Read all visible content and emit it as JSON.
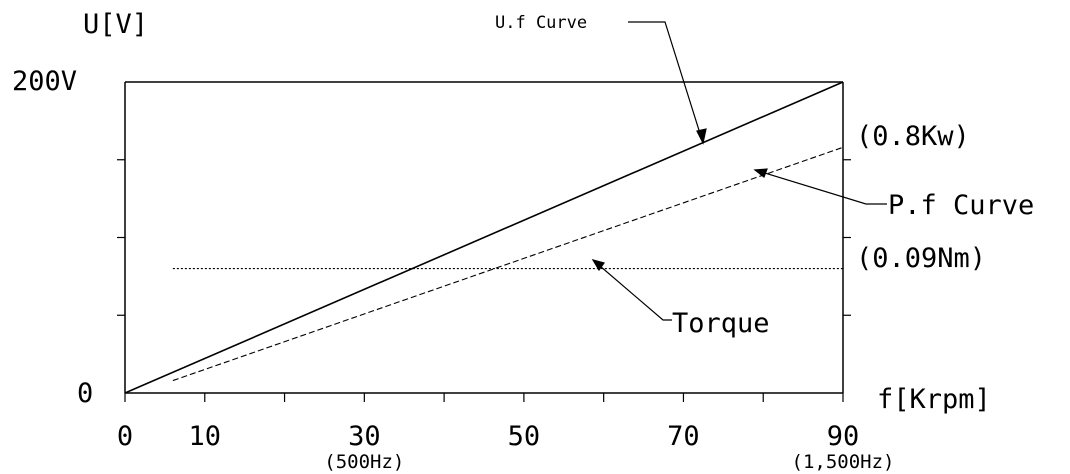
{
  "chart_data": {
    "type": "line",
    "ylabel": "U[V]",
    "xlabel": "f[Krpm]",
    "y_max_label": "200V",
    "y_zero_label": "0",
    "xlim": [
      0,
      90
    ],
    "ylim": [
      0,
      200
    ],
    "x_ticks": [
      {
        "value": 0,
        "label": "0",
        "sublabel": ""
      },
      {
        "value": 10,
        "label": "10",
        "sublabel": ""
      },
      {
        "value": 30,
        "label": "30",
        "sublabel": "(500Hz)"
      },
      {
        "value": 50,
        "label": "50",
        "sublabel": ""
      },
      {
        "value": 70,
        "label": "70",
        "sublabel": ""
      },
      {
        "value": 90,
        "label": "90",
        "sublabel": "(1,500Hz)"
      }
    ],
    "minor_x_ticks": [
      20,
      40,
      60,
      80
    ],
    "y_minor_ticks": [
      50,
      100,
      150
    ],
    "series": [
      {
        "name": "U.f Curve",
        "style": "solid",
        "x": [
          0,
          90
        ],
        "y": [
          0,
          200
        ]
      },
      {
        "name": "P.f Curve",
        "style": "dashed",
        "x": [
          6,
          90
        ],
        "y": [
          8,
          158
        ]
      },
      {
        "name": "Torque",
        "style": "dotted",
        "x": [
          6,
          90
        ],
        "y": [
          80,
          80
        ]
      }
    ],
    "annotations": [
      {
        "id": "uf",
        "text": "U.f Curve"
      },
      {
        "id": "pf",
        "text": "P.f Curve"
      },
      {
        "id": "pf_value",
        "text": "(0.8Kw)"
      },
      {
        "id": "torque",
        "text": "Torque"
      },
      {
        "id": "torque_value",
        "text": "(0.09Nm)"
      }
    ],
    "grid": false
  }
}
